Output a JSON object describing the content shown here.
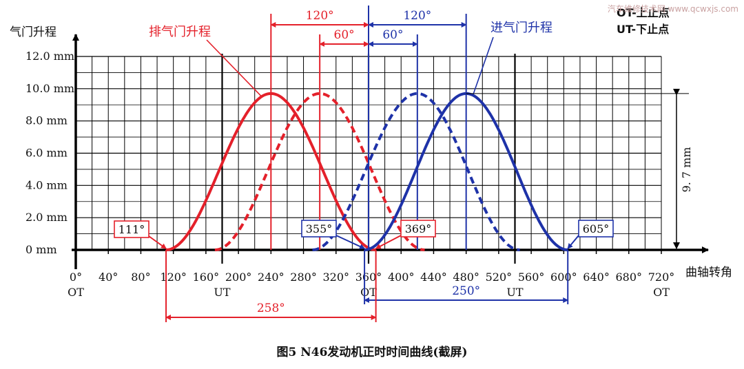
{
  "watermark": "汽车维修技术网 www.qcwxjs.com",
  "caption": "图5   N46发动机正时时间曲线(截屏)",
  "legend_top": {
    "ot": "OT-上止点",
    "ut": "UT-下止点"
  },
  "colors": {
    "exhaust": "#e4202a",
    "intake": "#1e32a8",
    "grid": "#000000"
  },
  "chart_data": {
    "type": "line",
    "ylabel": "气门升程",
    "xlabel": "曲轴转角",
    "ylim": [
      0,
      12
    ],
    "xlim": [
      0,
      720
    ],
    "y_ticks": [
      {
        "v": 0,
        "label": "0  mm"
      },
      {
        "v": 2,
        "label": "2.0  mm"
      },
      {
        "v": 4,
        "label": "4.0  mm"
      },
      {
        "v": 6,
        "label": "6.0  mm"
      },
      {
        "v": 8,
        "label": "8.0  mm"
      },
      {
        "v": 10,
        "label": "10.0  mm"
      },
      {
        "v": 12,
        "label": "12.0  mm"
      }
    ],
    "x_ticks": [
      0,
      40,
      80,
      120,
      160,
      200,
      240,
      280,
      320,
      360,
      400,
      440,
      480,
      520,
      560,
      600,
      640,
      680,
      720
    ],
    "x_tick_suffix": "°",
    "dead_centers": [
      {
        "x": 0,
        "label": "OT"
      },
      {
        "x": 180,
        "label": "UT"
      },
      {
        "x": 360,
        "label": "OT"
      },
      {
        "x": 540,
        "label": "UT"
      },
      {
        "x": 720,
        "label": "OT"
      }
    ],
    "series": [
      {
        "name": "排气门升程",
        "kind": "exhaust",
        "style": "solid",
        "start": 111,
        "end": 369,
        "peak_x": 240,
        "peak_y": 9.7
      },
      {
        "name": "",
        "kind": "exhaust",
        "style": "dashed",
        "start": 171,
        "end": 429,
        "peak_x": 300,
        "peak_y": 9.7
      },
      {
        "name": "",
        "kind": "intake",
        "style": "dashed",
        "start": 291,
        "end": 546,
        "peak_x": 420,
        "peak_y": 9.7
      },
      {
        "name": "进气门升程",
        "kind": "intake",
        "style": "solid",
        "start": 355,
        "end": 605,
        "peak_x": 480,
        "peak_y": 9.7
      }
    ],
    "callouts": [
      {
        "x": 111,
        "label": "111°",
        "kind": "exhaust"
      },
      {
        "x": 355,
        "label": "355°",
        "kind": "intake"
      },
      {
        "x": 369,
        "label": "369°",
        "kind": "exhaust"
      },
      {
        "x": 605,
        "label": "605°",
        "kind": "intake"
      }
    ],
    "spans": [
      {
        "label": "120°",
        "from": 240,
        "to": 360,
        "kind": "exhaust"
      },
      {
        "label": "60°",
        "from": 300,
        "to": 360,
        "kind": "exhaust"
      },
      {
        "label": "120°",
        "from": 360,
        "to": 480,
        "kind": "intake"
      },
      {
        "label": "60°",
        "from": 360,
        "to": 420,
        "kind": "intake"
      },
      {
        "label": "258°",
        "from": 111,
        "to": 369,
        "kind": "exhaust"
      },
      {
        "label": "250°",
        "from": 355,
        "to": 605,
        "kind": "intake"
      }
    ],
    "peak_annotation": {
      "label": "9. 7  mm",
      "value": 9.7
    }
  }
}
